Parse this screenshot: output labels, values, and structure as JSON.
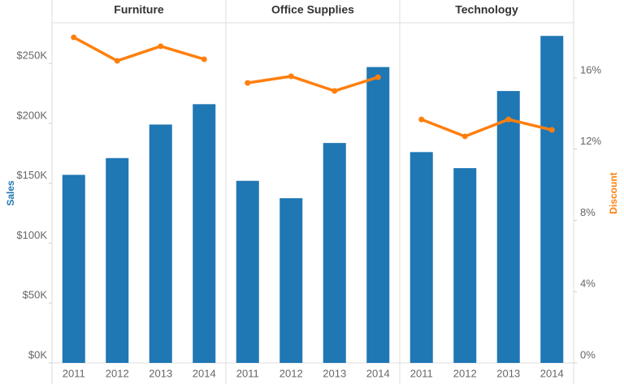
{
  "chart_data": {
    "type": "combo",
    "y_label": "Sales",
    "y2_label": "Discount",
    "categories": [
      "2011",
      "2012",
      "2013",
      "2014"
    ],
    "ylim": [
      0,
      284000
    ],
    "yticks": [
      {
        "value": 0,
        "label": "$0K"
      },
      {
        "value": 50000,
        "label": "$50K"
      },
      {
        "value": 100000,
        "label": "$100K"
      },
      {
        "value": 150000,
        "label": "$150K"
      },
      {
        "value": 200000,
        "label": "$200K"
      },
      {
        "value": 250000,
        "label": "$250K"
      }
    ],
    "y2lim": [
      0,
      19.1
    ],
    "y2ticks": [
      {
        "value": 0,
        "label": "0%"
      },
      {
        "value": 4,
        "label": "4%"
      },
      {
        "value": 8,
        "label": "8%"
      },
      {
        "value": 12,
        "label": "12%"
      },
      {
        "value": 16,
        "label": "16%"
      }
    ],
    "panels": [
      {
        "title": "Furniture",
        "series": [
          {
            "type": "bar",
            "color": "#1f77b4",
            "values": [
              157000,
              171000,
              199000,
              216000
            ]
          },
          {
            "type": "line",
            "axis": "y2",
            "color": "#ff7f0e",
            "values": [
              18.28,
              16.96,
              17.78,
              17.05
            ]
          }
        ]
      },
      {
        "title": "Office Supplies",
        "series": [
          {
            "type": "bar",
            "color": "#1f77b4",
            "values": [
              152000,
              137500,
              183600,
              247000
            ]
          },
          {
            "type": "line",
            "axis": "y2",
            "color": "#ff7f0e",
            "values": [
              15.72,
              16.09,
              15.27,
              16.04
            ]
          }
        ]
      },
      {
        "title": "Technology",
        "series": [
          {
            "type": "bar",
            "color": "#1f77b4",
            "values": [
              176000,
              162600,
              227000,
              273000
            ]
          },
          {
            "type": "line",
            "axis": "y2",
            "color": "#ff7f0e",
            "values": [
              13.67,
              12.72,
              13.67,
              13.08
            ]
          }
        ]
      }
    ]
  }
}
